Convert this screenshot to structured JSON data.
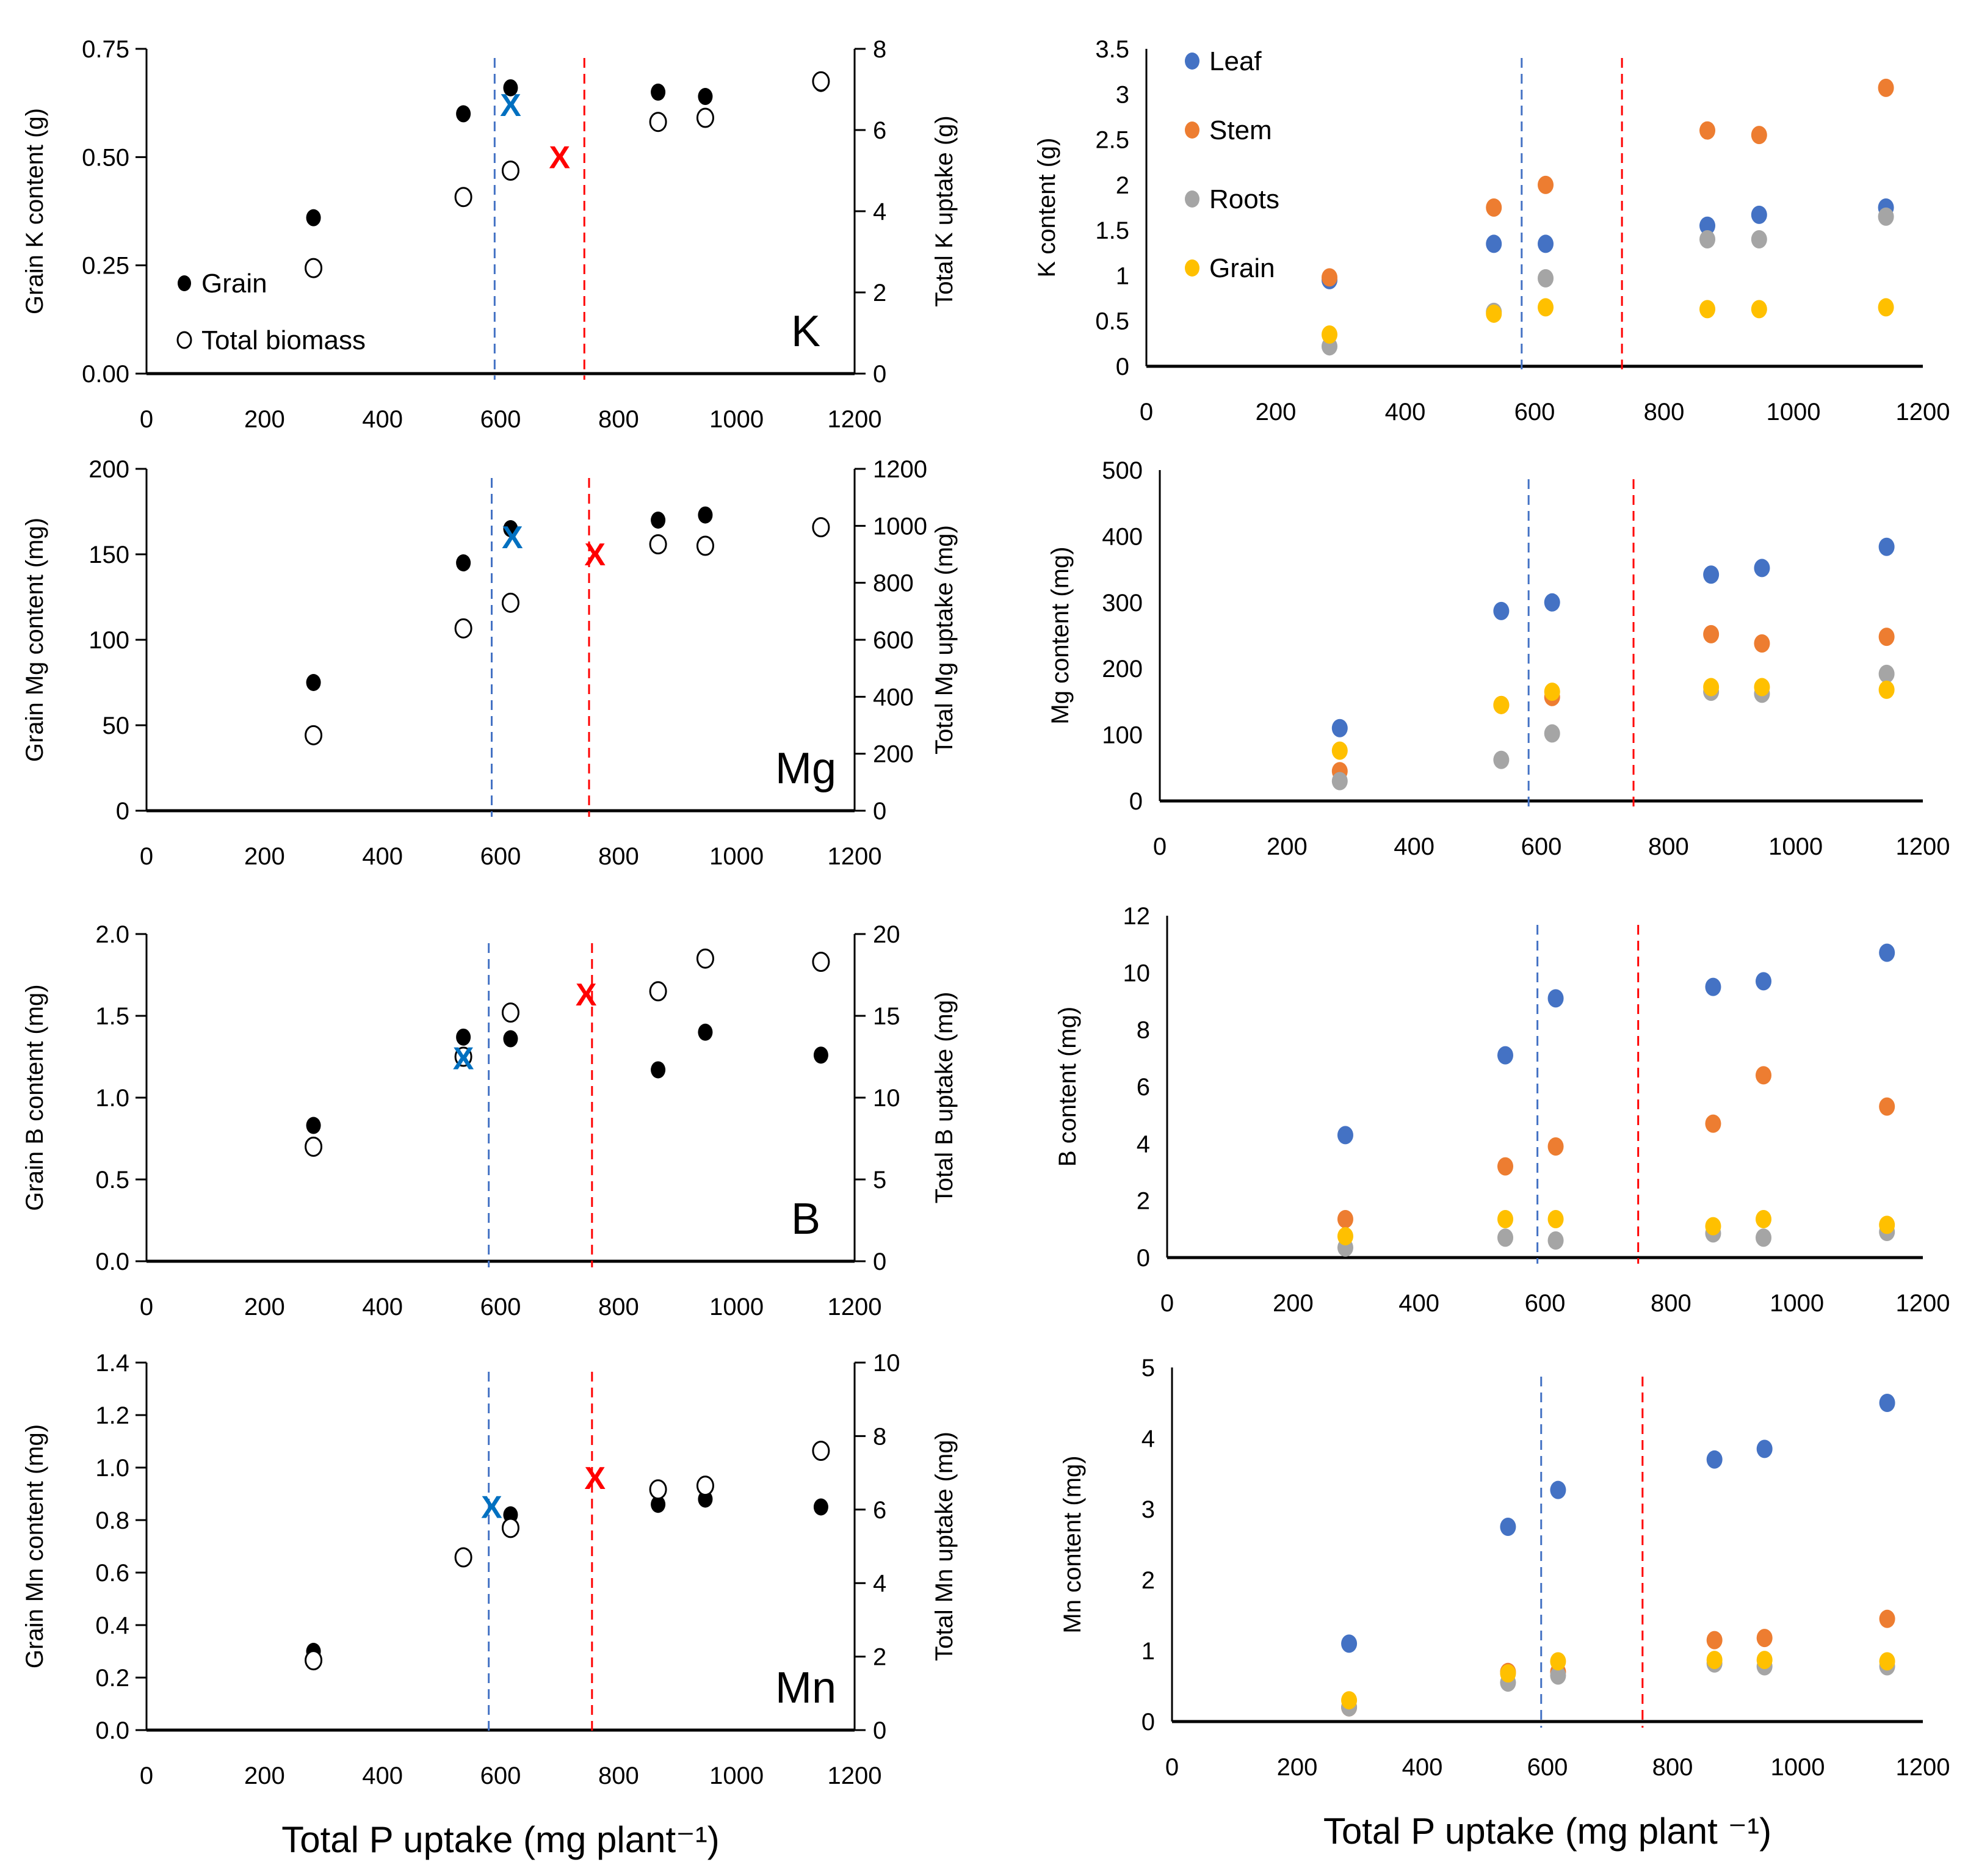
{
  "figure": {
    "shared_xlabel": "Total P uptake (mg plant⁻¹)",
    "colors": {
      "leaf": "#4472C4",
      "stem": "#ED7D31",
      "roots": "#A5A5A5",
      "grain_org": "#FFC000",
      "grain_black": "#000000",
      "blue_marker": "#0070C0",
      "red_marker": "#FF0000",
      "blue_line": "#4472C4",
      "red_line": "#FF0000"
    }
  },
  "chart_data": [
    {
      "id": "K-left",
      "type": "scatter",
      "panel_label": "K",
      "xlabel": "",
      "ylabel": "Grain K content (g)",
      "y2label": "Total K uptake (g)",
      "xlim": [
        0,
        1200
      ],
      "xticks": [
        0,
        200,
        400,
        600,
        800,
        1000,
        1200
      ],
      "ylim": [
        0,
        0.75
      ],
      "yticks": [
        "0.00",
        "0.25",
        "0.50",
        "0.75"
      ],
      "y2lim": [
        0,
        8
      ],
      "y2ticks": [
        "0",
        "2",
        "4",
        "6",
        "8"
      ],
      "legend": {
        "position": "bottom-left",
        "entries": [
          "Grain",
          "Total biomass"
        ]
      },
      "x": [
        283,
        537,
        617,
        867,
        947,
        1143
      ],
      "series": [
        {
          "name": "Grain",
          "axis": "left",
          "marker": "filled",
          "values": [
            0.36,
            0.6,
            0.66,
            0.65,
            0.64,
            0.67
          ]
        },
        {
          "name": "Total biomass",
          "axis": "right",
          "marker": "open",
          "values": [
            2.6,
            4.35,
            5.0,
            6.2,
            6.3,
            7.2
          ]
        }
      ],
      "markers_x": [
        {
          "name": "blue-x",
          "x": 617,
          "y": 0.62,
          "color": "blue"
        },
        {
          "name": "red-x",
          "x": 700,
          "y": 0.5,
          "color": "red"
        }
      ],
      "vlines": [
        {
          "x": 590,
          "color": "blue"
        },
        {
          "x": 742,
          "color": "red"
        }
      ]
    },
    {
      "id": "K-right",
      "type": "scatter",
      "xlabel": "",
      "ylabel": "K content (g)",
      "xlim": [
        0,
        1200
      ],
      "xticks": [
        0,
        200,
        400,
        600,
        800,
        1000,
        1200
      ],
      "ylim": [
        0,
        3.5
      ],
      "yticks": [
        "0",
        "0.5",
        "1",
        "1.5",
        "2",
        "2.5",
        "3",
        "3.5"
      ],
      "legend": {
        "position": "top-left",
        "entries": [
          "Leaf",
          "Stem",
          "Roots",
          "Grain"
        ]
      },
      "x": [
        283,
        537,
        617,
        867,
        947,
        1143
      ],
      "series": [
        {
          "name": "Leaf",
          "values": [
            0.95,
            1.35,
            1.35,
            1.55,
            1.67,
            1.75
          ]
        },
        {
          "name": "Stem",
          "values": [
            0.98,
            1.75,
            2.0,
            2.6,
            2.55,
            3.07
          ]
        },
        {
          "name": "Roots",
          "values": [
            0.22,
            0.6,
            0.97,
            1.4,
            1.4,
            1.65
          ]
        },
        {
          "name": "Grain",
          "values": [
            0.35,
            0.58,
            0.65,
            0.63,
            0.63,
            0.65
          ]
        }
      ],
      "vlines": [
        {
          "x": 580,
          "color": "blue"
        },
        {
          "x": 735,
          "color": "red"
        }
      ]
    },
    {
      "id": "Mg-left",
      "type": "scatter",
      "panel_label": "Mg",
      "xlabel": "",
      "ylabel": "Grain Mg  content (mg)",
      "y2label": "Total Mg uptake (mg)",
      "xlim": [
        0,
        1200
      ],
      "xticks": [
        0,
        200,
        400,
        600,
        800,
        1000,
        1200
      ],
      "ylim": [
        0,
        200
      ],
      "yticks": [
        "0",
        "50",
        "100",
        "150",
        "200"
      ],
      "y2lim": [
        0,
        1200
      ],
      "y2ticks": [
        "0",
        "200",
        "400",
        "600",
        "800",
        "1000",
        "1200"
      ],
      "x": [
        283,
        537,
        617,
        867,
        947,
        1143
      ],
      "series": [
        {
          "name": "Grain",
          "axis": "left",
          "marker": "filled",
          "values": [
            75,
            145,
            165,
            170,
            173,
            165
          ]
        },
        {
          "name": "Total biomass",
          "axis": "right",
          "marker": "open",
          "values": [
            265,
            640,
            730,
            935,
            930,
            995
          ]
        }
      ],
      "markers_x": [
        {
          "name": "blue-x",
          "x": 620,
          "y": 160,
          "color": "blue"
        },
        {
          "name": "red-x",
          "x": 760,
          "y": 150,
          "color": "red"
        }
      ],
      "vlines": [
        {
          "x": 585,
          "color": "blue"
        },
        {
          "x": 750,
          "color": "red"
        }
      ]
    },
    {
      "id": "Mg-right",
      "type": "scatter",
      "xlabel": "",
      "ylabel": "Mg content (mg)",
      "xlim": [
        0,
        1200
      ],
      "xticks": [
        0,
        200,
        400,
        600,
        800,
        1000,
        1200
      ],
      "ylim": [
        0,
        500
      ],
      "yticks": [
        "0",
        "100",
        "200",
        "300",
        "400",
        "500"
      ],
      "x": [
        283,
        537,
        617,
        867,
        947,
        1143
      ],
      "series": [
        {
          "name": "Leaf",
          "values": [
            110,
            287,
            300,
            342,
            352,
            384
          ]
        },
        {
          "name": "Stem",
          "values": [
            45,
            145,
            157,
            252,
            238,
            248
          ]
        },
        {
          "name": "Roots",
          "values": [
            30,
            62,
            102,
            165,
            162,
            192
          ]
        },
        {
          "name": "Grain",
          "values": [
            76,
            145,
            165,
            172,
            172,
            168
          ]
        }
      ],
      "vlines": [
        {
          "x": 580,
          "color": "blue"
        },
        {
          "x": 745,
          "color": "red"
        }
      ]
    },
    {
      "id": "B-left",
      "type": "scatter",
      "panel_label": "B",
      "xlabel": "",
      "ylabel": "Grain B  content (mg)",
      "y2label": "Total B uptake (mg)",
      "xlim": [
        0,
        1200
      ],
      "xticks": [
        0,
        200,
        400,
        600,
        800,
        1000,
        1200
      ],
      "ylim": [
        0,
        2.0
      ],
      "yticks": [
        "0.0",
        "0.5",
        "1.0",
        "1.5",
        "2.0"
      ],
      "y2lim": [
        0,
        20
      ],
      "y2ticks": [
        "0",
        "5",
        "10",
        "15",
        "20"
      ],
      "x": [
        283,
        537,
        617,
        867,
        947,
        1143
      ],
      "series": [
        {
          "name": "Grain",
          "axis": "left",
          "marker": "filled",
          "values": [
            0.83,
            1.37,
            1.36,
            1.17,
            1.4,
            1.26
          ]
        },
        {
          "name": "Total biomass",
          "axis": "right",
          "marker": "open",
          "values": [
            7.0,
            12.5,
            15.2,
            16.5,
            18.5,
            18.3
          ]
        }
      ],
      "markers_x": [
        {
          "name": "blue-x",
          "x": 537,
          "y": 1.24,
          "color": "blue"
        },
        {
          "name": "red-x",
          "x": 745,
          "y": 1.63,
          "color": "red"
        }
      ],
      "vlines": [
        {
          "x": 580,
          "color": "blue"
        },
        {
          "x": 755,
          "color": "red"
        }
      ]
    },
    {
      "id": "B-right",
      "type": "scatter",
      "xlabel": "",
      "ylabel": "B content (mg)",
      "xlim": [
        0,
        1200
      ],
      "xticks": [
        0,
        200,
        400,
        600,
        800,
        1000,
        1200
      ],
      "ylim": [
        0,
        12
      ],
      "yticks": [
        "0",
        "2",
        "4",
        "6",
        "8",
        "10",
        "12"
      ],
      "x": [
        283,
        537,
        617,
        867,
        947,
        1143
      ],
      "series": [
        {
          "name": "Leaf",
          "values": [
            4.3,
            7.1,
            9.1,
            9.5,
            9.7,
            10.7
          ]
        },
        {
          "name": "Stem",
          "values": [
            1.35,
            3.2,
            3.9,
            4.7,
            6.4,
            5.3
          ]
        },
        {
          "name": "Roots",
          "values": [
            0.35,
            0.7,
            0.6,
            0.85,
            0.7,
            0.9
          ]
        },
        {
          "name": "Grain",
          "values": [
            0.75,
            1.35,
            1.35,
            1.1,
            1.35,
            1.15
          ]
        }
      ],
      "vlines": [
        {
          "x": 588,
          "color": "blue"
        },
        {
          "x": 748,
          "color": "red"
        }
      ]
    },
    {
      "id": "Mn-left",
      "type": "scatter",
      "panel_label": "Mn",
      "xlabel": "Total P uptake (mg plant⁻¹)",
      "ylabel": "Grain Mn  content (mg)",
      "y2label": "Total Mn uptake (mg)",
      "xlim": [
        0,
        1200
      ],
      "xticks": [
        0,
        200,
        400,
        600,
        800,
        1000,
        1200
      ],
      "ylim": [
        0,
        1.4
      ],
      "yticks": [
        "0.0",
        "0.2",
        "0.4",
        "0.6",
        "0.8",
        "1.0",
        "1.2",
        "1.4"
      ],
      "y2lim": [
        0,
        10
      ],
      "y2ticks": [
        "0",
        "2",
        "4",
        "6",
        "8",
        "10"
      ],
      "x": [
        283,
        537,
        617,
        867,
        947,
        1143
      ],
      "series": [
        {
          "name": "Grain",
          "axis": "left",
          "marker": "filled",
          "values": [
            0.3,
            0.66,
            0.82,
            0.86,
            0.88,
            0.85
          ]
        },
        {
          "name": "Total biomass",
          "axis": "right",
          "marker": "open",
          "values": [
            1.9,
            4.7,
            5.5,
            6.55,
            6.65,
            7.6
          ]
        }
      ],
      "markers_x": [
        {
          "name": "blue-x",
          "x": 585,
          "y": 0.85,
          "color": "blue"
        },
        {
          "name": "red-x",
          "x": 760,
          "y": 0.96,
          "color": "red"
        }
      ],
      "vlines": [
        {
          "x": 580,
          "color": "blue"
        },
        {
          "x": 755,
          "color": "red"
        }
      ]
    },
    {
      "id": "Mn-right",
      "type": "scatter",
      "xlabel": "Total P uptake (mg plant ⁻¹)",
      "ylabel": "Mn content (mg)",
      "xlim": [
        0,
        1200
      ],
      "xticks": [
        0,
        200,
        400,
        600,
        800,
        1000,
        1200
      ],
      "ylim": [
        0,
        5
      ],
      "yticks": [
        "0",
        "1",
        "2",
        "3",
        "4",
        "5"
      ],
      "x": [
        283,
        537,
        617,
        867,
        947,
        1143
      ],
      "series": [
        {
          "name": "Leaf",
          "values": [
            1.1,
            2.75,
            3.27,
            3.7,
            3.85,
            4.5
          ]
        },
        {
          "name": "Stem",
          "values": [
            0.2,
            0.7,
            0.7,
            1.15,
            1.18,
            1.45
          ]
        },
        {
          "name": "Roots",
          "values": [
            0.2,
            0.55,
            0.65,
            0.82,
            0.78,
            0.78
          ]
        },
        {
          "name": "Grain",
          "values": [
            0.3,
            0.68,
            0.85,
            0.87,
            0.87,
            0.85
          ]
        }
      ],
      "vlines": [
        {
          "x": 590,
          "color": "blue"
        },
        {
          "x": 752,
          "color": "red"
        }
      ]
    }
  ]
}
